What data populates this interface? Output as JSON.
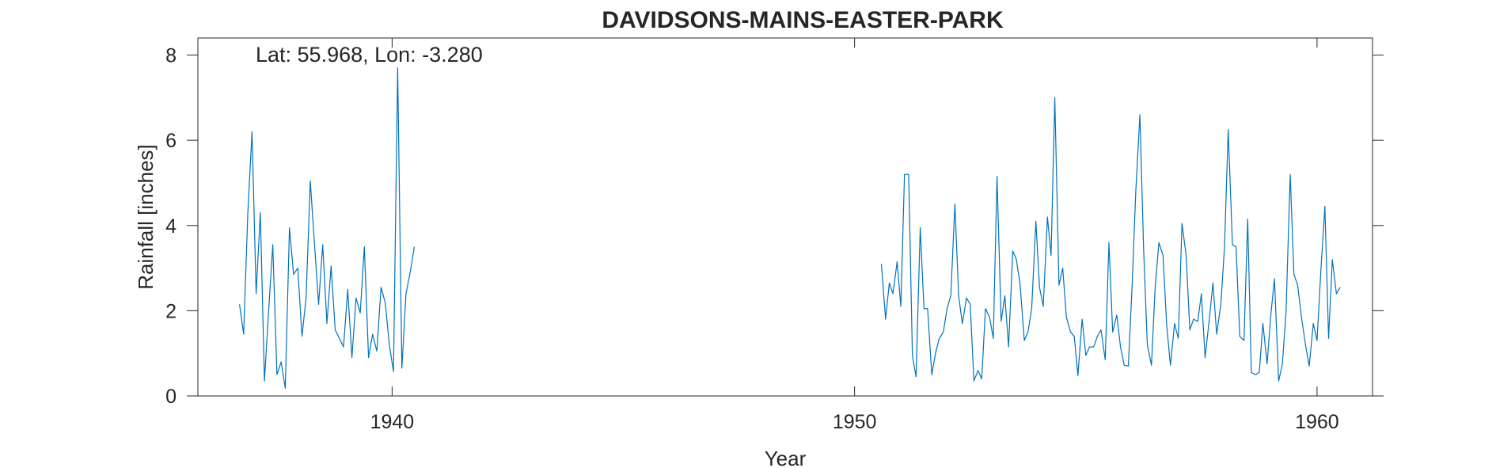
{
  "chart_data": {
    "type": "line",
    "title": "DAVIDSONS-MAINS-EASTER-PARK",
    "xlabel": "Year",
    "ylabel": "Rainfall [inches]",
    "annotation": "Lat: 55.968, Lon: -3.280",
    "xlim": [
      1935.8,
      1961.2
    ],
    "ylim": [
      0,
      8.4
    ],
    "xticks": [
      1940,
      1950,
      1960
    ],
    "yticks": [
      0,
      2,
      4,
      6,
      8
    ],
    "grid": false,
    "line_color": "#0072BD",
    "series": [
      {
        "segments": [
          {
            "x": [
              1936.7,
              1936.79,
              1936.88,
              1936.97,
              1937.06,
              1937.15,
              1937.24,
              1937.33,
              1937.42,
              1937.51,
              1937.6,
              1937.69,
              1937.78,
              1937.87,
              1937.96,
              1938.05,
              1938.14,
              1938.23,
              1938.32,
              1938.41,
              1938.5,
              1938.59,
              1938.68,
              1938.77,
              1938.86,
              1938.95,
              1939.04,
              1939.13,
              1939.22,
              1939.31,
              1939.4,
              1939.49,
              1939.58,
              1939.67,
              1939.76,
              1939.85,
              1939.94,
              1940.03,
              1940.12,
              1940.21,
              1940.3,
              1940.39,
              1940.48
            ],
            "y": [
              2.15,
              1.45,
              4.3,
              6.2,
              2.4,
              4.3,
              0.35,
              2.0,
              3.55,
              0.5,
              0.8,
              0.18,
              3.95,
              2.85,
              3.0,
              1.4,
              2.3,
              5.05,
              3.6,
              2.15,
              3.55,
              1.7,
              3.05,
              1.55,
              1.35,
              1.15,
              2.5,
              0.9,
              2.3,
              1.95,
              3.5,
              0.9,
              1.45,
              1.05,
              2.55,
              2.2,
              1.2,
              0.57,
              7.7,
              0.65,
              2.4,
              2.9,
              3.5
            ]
          },
          {
            "x": [
              1950.58,
              1950.67,
              1950.75,
              1950.83,
              1950.92,
              1951.0,
              1951.08,
              1951.17,
              1951.25,
              1951.33,
              1951.42,
              1951.5,
              1951.58,
              1951.67,
              1951.75,
              1951.83,
              1951.92,
              1952.0,
              1952.08,
              1952.17,
              1952.25,
              1952.33,
              1952.42,
              1952.5,
              1952.58,
              1952.67,
              1952.75,
              1952.83,
              1952.92,
              1953.0,
              1953.08,
              1953.17,
              1953.25,
              1953.33,
              1953.42,
              1953.5,
              1953.58,
              1953.67,
              1953.75,
              1953.83,
              1953.92,
              1954.0,
              1954.08,
              1954.17,
              1954.25,
              1954.33,
              1954.42,
              1954.5,
              1954.58,
              1954.67,
              1954.75,
              1954.83,
              1954.92,
              1955.0,
              1955.08,
              1955.17,
              1955.25,
              1955.33,
              1955.42,
              1955.5,
              1955.58,
              1955.67,
              1955.75,
              1955.83,
              1955.92,
              1956.0,
              1956.08,
              1956.17,
              1956.25,
              1956.33,
              1956.42,
              1956.5,
              1956.58,
              1956.67,
              1956.75,
              1956.83,
              1956.92,
              1957.0,
              1957.08,
              1957.17,
              1957.25,
              1957.33,
              1957.42,
              1957.5,
              1957.58,
              1957.67,
              1957.75,
              1957.83,
              1957.92,
              1958.0,
              1958.08,
              1958.17,
              1958.25,
              1958.33,
              1958.42,
              1958.5,
              1958.58,
              1958.67,
              1958.75,
              1958.83,
              1958.92,
              1959.0,
              1959.08,
              1959.17,
              1959.25,
              1959.33,
              1959.42,
              1959.5,
              1959.58,
              1959.67,
              1959.75,
              1959.83,
              1959.92,
              1960.0,
              1960.08,
              1960.17,
              1960.25,
              1960.33,
              1960.42,
              1960.5
            ],
            "y": [
              3.1,
              1.8,
              2.65,
              2.4,
              3.15,
              2.1,
              5.2,
              5.2,
              0.95,
              0.45,
              3.95,
              2.05,
              2.05,
              0.5,
              1.0,
              1.35,
              1.5,
              2.05,
              2.35,
              4.5,
              2.35,
              1.7,
              2.3,
              2.15,
              0.35,
              0.6,
              0.4,
              2.05,
              1.85,
              1.35,
              5.15,
              1.75,
              2.35,
              1.15,
              3.4,
              3.2,
              2.6,
              1.3,
              1.5,
              2.05,
              4.1,
              2.55,
              2.1,
              4.2,
              3.3,
              7.0,
              2.6,
              3.0,
              1.85,
              1.5,
              1.4,
              0.48,
              1.8,
              0.95,
              1.15,
              1.15,
              1.4,
              1.55,
              0.85,
              3.6,
              1.5,
              1.9,
              1.15,
              0.72,
              0.7,
              2.55,
              4.8,
              6.6,
              3.45,
              1.2,
              0.72,
              2.55,
              3.6,
              3.3,
              1.65,
              0.72,
              1.7,
              1.35,
              4.05,
              3.3,
              1.55,
              1.8,
              1.75,
              2.4,
              0.9,
              1.8,
              2.65,
              1.45,
              2.15,
              3.5,
              6.25,
              3.55,
              3.5,
              1.4,
              1.3,
              4.15,
              0.55,
              0.5,
              0.55,
              1.7,
              0.75,
              1.9,
              2.75,
              0.35,
              0.75,
              1.95,
              5.2,
              2.85,
              2.6,
              1.8,
              1.2,
              0.7,
              1.7,
              1.3,
              2.9,
              4.45,
              1.35,
              3.2,
              2.4,
              2.55
            ]
          }
        ]
      }
    ]
  }
}
